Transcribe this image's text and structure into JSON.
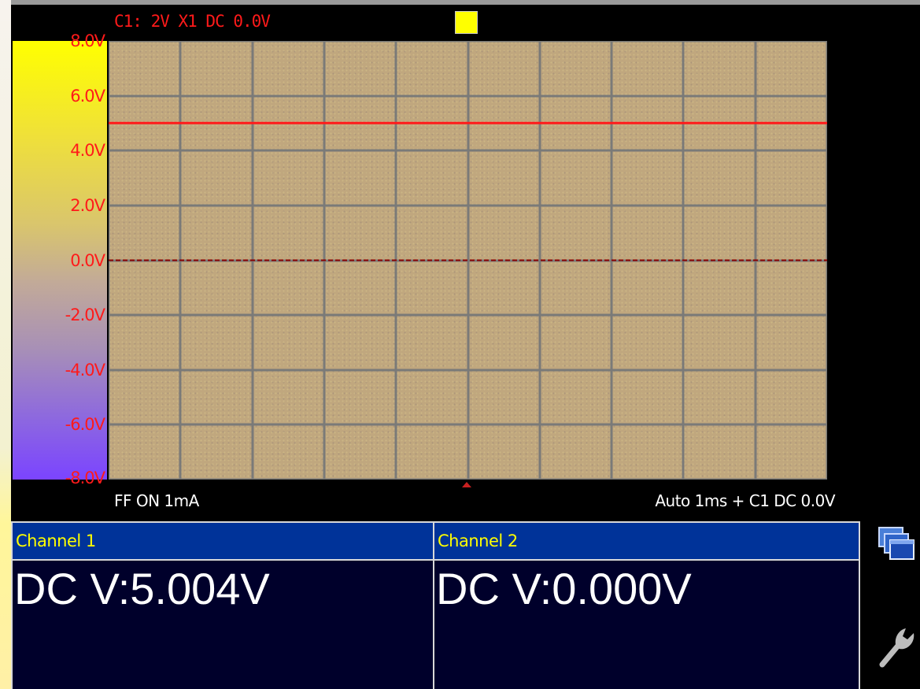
{
  "scope": {
    "header": "C1: 2V X1 DC 0.0V",
    "y_axis_labels": [
      "8.0V",
      "6.0V",
      "4.0V",
      "2.0V",
      "0.0V",
      "-2.0V",
      "-4.0V",
      "-6.0V",
      "-8.0V"
    ],
    "footer_left": "FF ON 1mA",
    "footer_right": "Auto 1ms + C1 DC 0.0V",
    "trace_level_v": 5.004,
    "ground_level_v": 0.0,
    "y_range_v": [
      -8.0,
      8.0
    ],
    "grid": {
      "cols": 10,
      "rows": 8
    },
    "colors": {
      "trace": "#ff1a1a",
      "ground": "#8a0000",
      "grid": "#7a7a78",
      "trigger_indicator": "#ffff00"
    }
  },
  "measurements": [
    {
      "header": "Channel 1",
      "value": "DC V:5.004V"
    },
    {
      "header": "Channel 2",
      "value": "DC V:0.000V"
    }
  ],
  "side_icons": [
    "windows-icon",
    "wrench-icon"
  ]
}
